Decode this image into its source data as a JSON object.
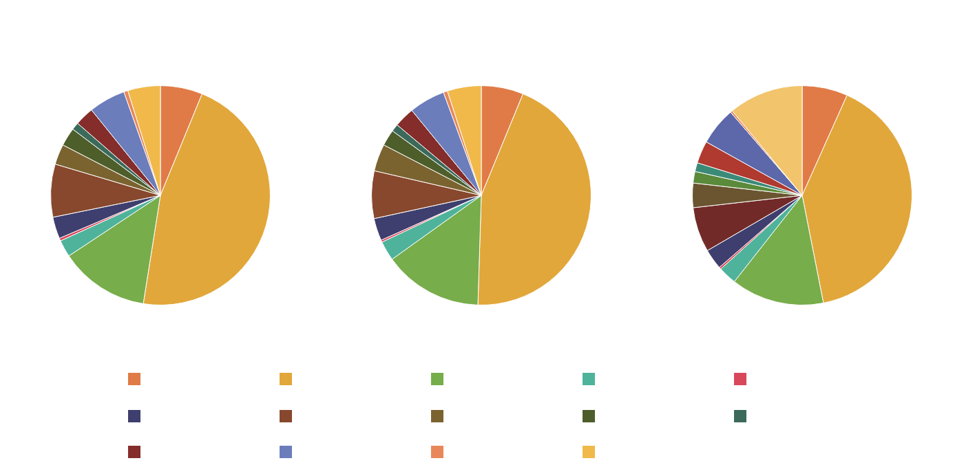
{
  "chart_data": [
    {
      "type": "pie",
      "categories": [
        null,
        null,
        null,
        null,
        null,
        null,
        null,
        null,
        null,
        null,
        null,
        null,
        null,
        null
      ],
      "values": [
        6.2,
        46.3,
        13.2,
        2.5,
        0.4,
        3.2,
        7.8,
        3.0,
        2.7,
        1.1,
        2.8,
        5.4,
        0.6,
        4.8
      ],
      "colors": [
        "#e07b47",
        "#e2a73a",
        "#77ad4a",
        "#4fb39b",
        "#d9475a",
        "#3e3f6e",
        "#87482d",
        "#7b6330",
        "#4d5e2b",
        "#3b6a5a",
        "#842d2b",
        "#6b7dbb",
        "#e8885a",
        "#f0b94a"
      ]
    },
    {
      "type": "pie",
      "categories": [
        null,
        null,
        null,
        null,
        null,
        null,
        null,
        null,
        null,
        null,
        null,
        null,
        null,
        null
      ],
      "values": [
        6.2,
        44.3,
        14.6,
        2.9,
        0.3,
        3.3,
        7.0,
        4.0,
        2.4,
        1.1,
        3.0,
        5.3,
        0.6,
        5.0
      ],
      "colors": [
        "#e07b47",
        "#e2a73a",
        "#77ad4a",
        "#4fb39b",
        "#d9475a",
        "#3e3f6e",
        "#87482d",
        "#7b6330",
        "#4d5e2b",
        "#3b6a5a",
        "#842d2b",
        "#6b7dbb",
        "#e8885a",
        "#f0b94a"
      ]
    },
    {
      "type": "pie",
      "categories": [
        null,
        null,
        null,
        null,
        null,
        null,
        null,
        null,
        null,
        null,
        null,
        null,
        null,
        null
      ],
      "values": [
        6.7,
        40.2,
        13.7,
        2.7,
        0.3,
        3.0,
        6.6,
        3.6,
        1.7,
        1.3,
        3.3,
        5.6,
        0.3,
        11.0
      ],
      "colors": [
        "#e07b47",
        "#e2a73a",
        "#77ad4a",
        "#4fb39b",
        "#d9475a",
        "#3e3f6e",
        "#722a28",
        "#6b5530",
        "#5a8a3a",
        "#3b8a78",
        "#b03a30",
        "#5c68aa",
        "#e8885a",
        "#f2c46c"
      ]
    }
  ]
}
